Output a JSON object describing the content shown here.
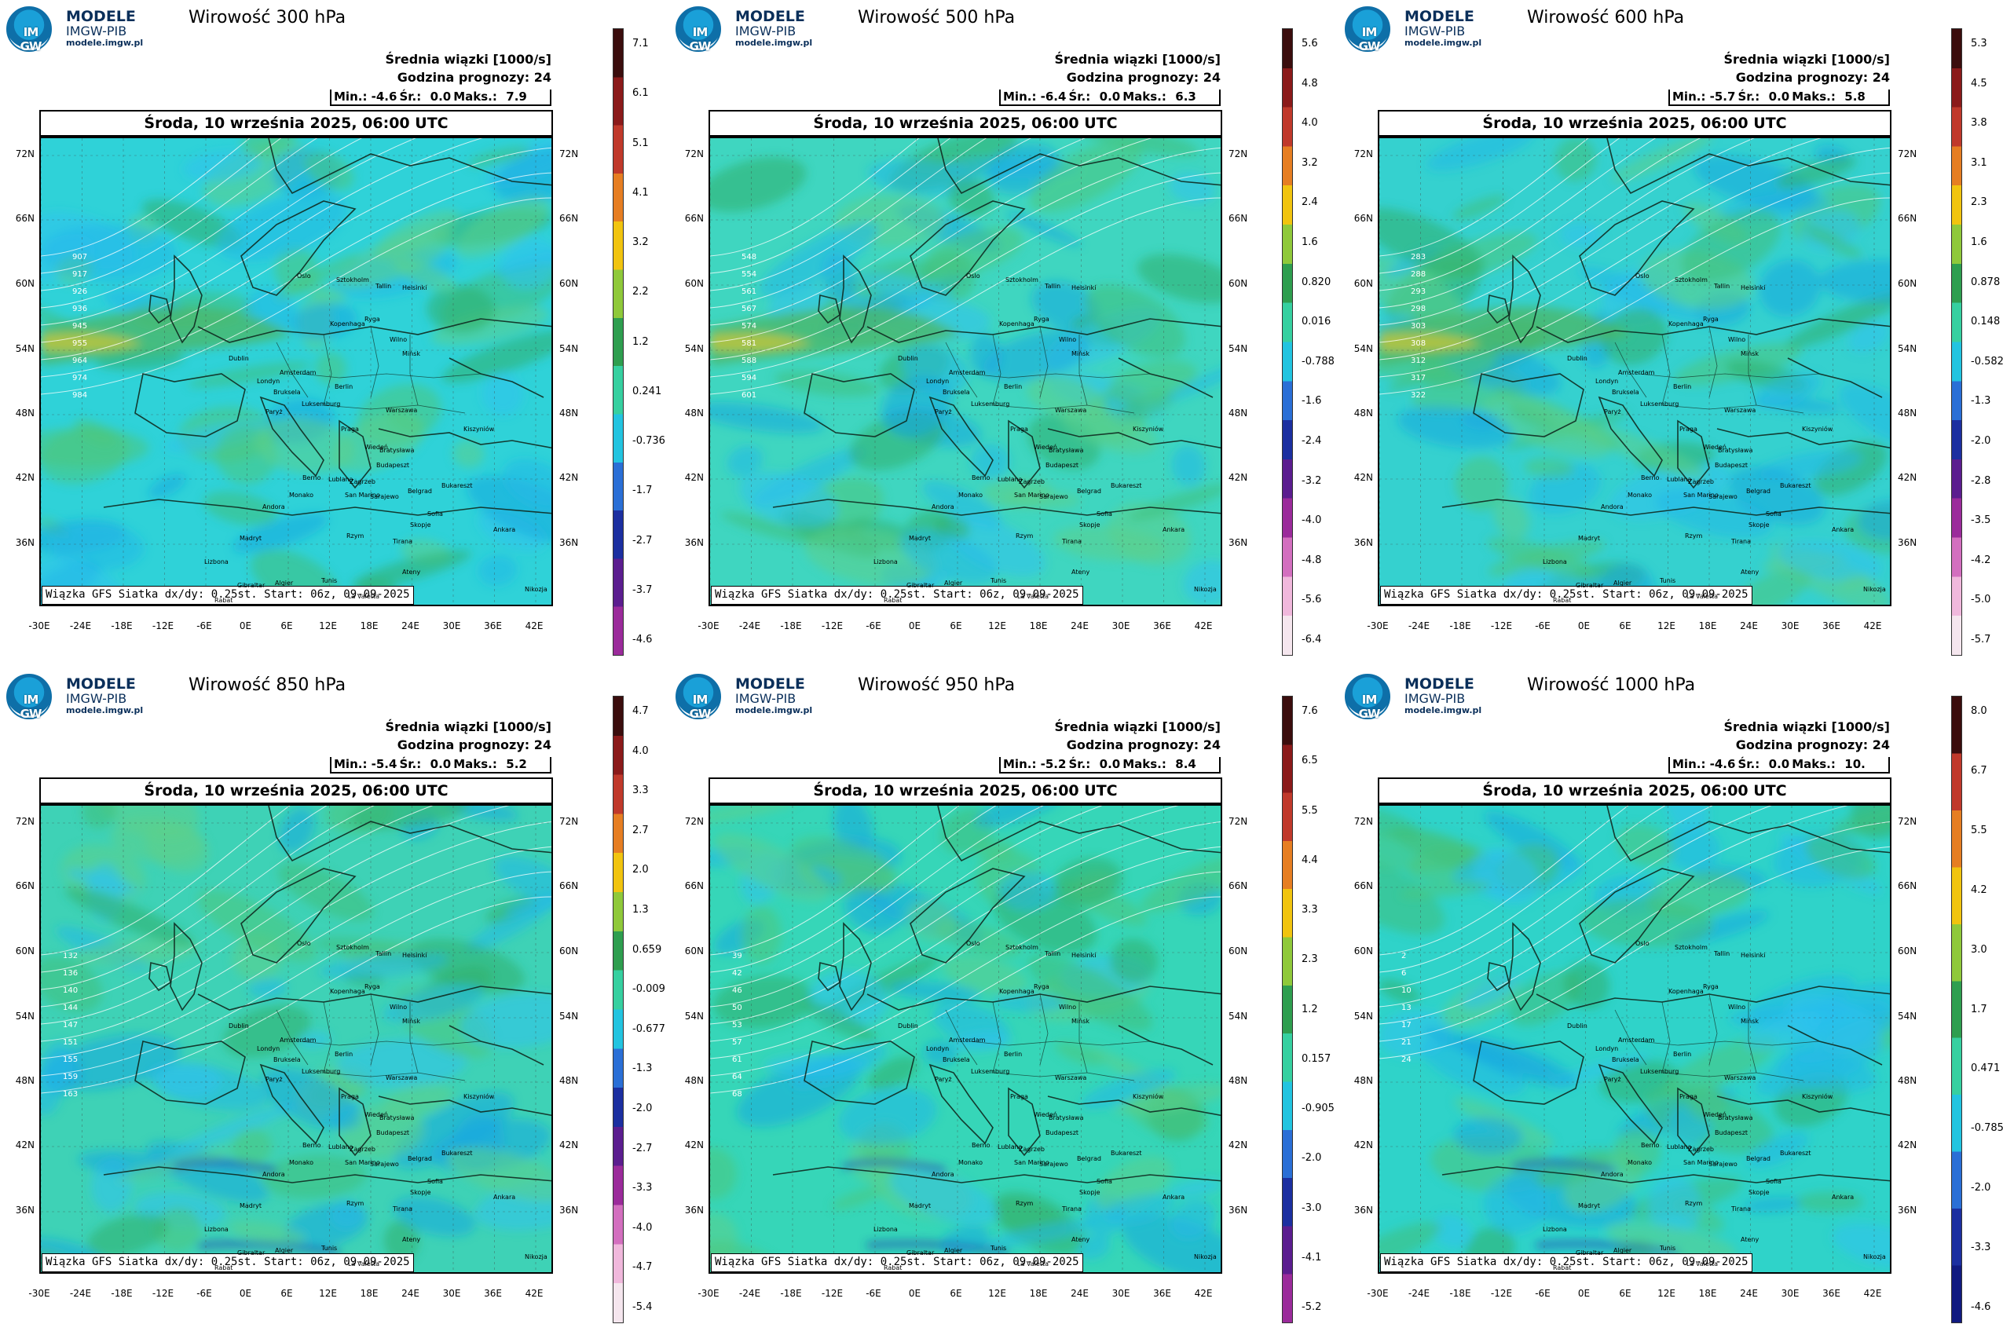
{
  "logo": {
    "line1": "MODELE",
    "line2": "IMGW-PIB",
    "line3": "modele.imgw.pl",
    "badge": "IM GW"
  },
  "common": {
    "var_label": "Średnia wiązki [1000/s]",
    "forecast": "Godzina prognozy: 24",
    "date": "Środa, 10 września 2025, 06:00 UTC",
    "footer": "Wiązka GFS Siatka dx/dy: 0.25st. Start: 06z, 09-09-2025",
    "stat_labels": {
      "min": "Min.:",
      "avg": "Śr.:",
      "max": "Maks.:"
    },
    "lat_labels": [
      "72N",
      "66N",
      "60N",
      "54N",
      "48N",
      "42N",
      "36N"
    ],
    "lon_labels": [
      "-30E",
      "-24E",
      "-18E",
      "-12E",
      "-6E",
      "0E",
      "6E",
      "12E",
      "18E",
      "24E",
      "30E",
      "36E",
      "42E"
    ],
    "cities": [
      {
        "name": "Helsinki"
      },
      {
        "name": "Oslo"
      },
      {
        "name": "Sztokholm"
      },
      {
        "name": "Tallin"
      },
      {
        "name": "Ryga"
      },
      {
        "name": "Wilno"
      },
      {
        "name": "Mińsk"
      },
      {
        "name": "Kopenhaga"
      },
      {
        "name": "Dublin"
      },
      {
        "name": "Amsterdam"
      },
      {
        "name": "Londyn"
      },
      {
        "name": "Berlin"
      },
      {
        "name": "Bruksela"
      },
      {
        "name": "Luksemburg"
      },
      {
        "name": "Paryż"
      },
      {
        "name": "Warszawa"
      },
      {
        "name": "Praga"
      },
      {
        "name": "Wiedeń"
      },
      {
        "name": "Bratysława"
      },
      {
        "name": "Kiszyniów"
      },
      {
        "name": "Budapeszt"
      },
      {
        "name": "Lublana"
      },
      {
        "name": "Zagrzeb"
      },
      {
        "name": "Berno"
      },
      {
        "name": "Belgrad"
      },
      {
        "name": "Sarajewo"
      },
      {
        "name": "Monako"
      },
      {
        "name": "San Marino"
      },
      {
        "name": "Bukareszt"
      },
      {
        "name": "Sofia"
      },
      {
        "name": "Skopje"
      },
      {
        "name": "Andora"
      },
      {
        "name": "Rzym"
      },
      {
        "name": "Tirana"
      },
      {
        "name": "Madryt"
      },
      {
        "name": "Ateny"
      },
      {
        "name": "Ankara"
      },
      {
        "name": "Lizbona"
      },
      {
        "name": "Gibraltar"
      },
      {
        "name": "Algier"
      },
      {
        "name": "Tunis"
      },
      {
        "name": "La Valetta"
      },
      {
        "name": "Rabat"
      },
      {
        "name": "Nikozja"
      }
    ]
  },
  "panels": [
    {
      "title": "Wirowość 300 hPa",
      "stats": {
        "min": "-4.6",
        "avg": "0.0",
        "max": "7.9"
      },
      "colorbar": {
        "ticks": [
          "7.1",
          "6.1",
          "5.1",
          "4.1",
          "3.2",
          "2.2",
          "1.2",
          "0.241",
          "-0.736",
          "-1.7",
          "-2.7",
          "-3.7",
          "-4.6"
        ],
        "colors": [
          "#3b0d0d",
          "#8b1a1a",
          "#c0392b",
          "#e67e22",
          "#f1c40f",
          "#8fc93a",
          "#2e9e4f",
          "#36d0a0",
          "#22c4e0",
          "#2a6fd6",
          "#1c2fa0",
          "#5b1d8f",
          "#9b2b9b"
        ]
      },
      "contours": [
        "907",
        "917",
        "926",
        "936",
        "945",
        "955",
        "964",
        "974",
        "984"
      ]
    },
    {
      "title": "Wirowość 500 hPa",
      "stats": {
        "min": "-6.4",
        "avg": "0.0",
        "max": "6.3"
      },
      "colorbar": {
        "ticks": [
          "5.6",
          "4.8",
          "4.0",
          "3.2",
          "2.4",
          "1.6",
          "0.820",
          "0.016",
          "-0.788",
          "-1.6",
          "-2.4",
          "-3.2",
          "-4.0",
          "-4.8",
          "-5.6",
          "-6.4"
        ],
        "colors": [
          "#3b0d0d",
          "#8b1a1a",
          "#c0392b",
          "#e67e22",
          "#f1c40f",
          "#8fc93a",
          "#2e9e4f",
          "#36d0a0",
          "#22c4e0",
          "#2a6fd6",
          "#1c2fa0",
          "#5b1d8f",
          "#9b2b9b",
          "#d36fbf",
          "#f0b8dc",
          "#f5e6ee"
        ]
      },
      "contours": [
        "548",
        "554",
        "561",
        "567",
        "574",
        "581",
        "588",
        "594",
        "601"
      ]
    },
    {
      "title": "Wirowość 600 hPa",
      "stats": {
        "min": "-5.7",
        "avg": "0.0",
        "max": "5.8"
      },
      "colorbar": {
        "ticks": [
          "5.3",
          "4.5",
          "3.8",
          "3.1",
          "2.3",
          "1.6",
          "0.878",
          "0.148",
          "-0.582",
          "-1.3",
          "-2.0",
          "-2.8",
          "-3.5",
          "-4.2",
          "-5.0",
          "-5.7"
        ],
        "colors": [
          "#3b0d0d",
          "#8b1a1a",
          "#c0392b",
          "#e67e22",
          "#f1c40f",
          "#8fc93a",
          "#2e9e4f",
          "#36d0a0",
          "#22c4e0",
          "#2a6fd6",
          "#1c2fa0",
          "#5b1d8f",
          "#9b2b9b",
          "#d36fbf",
          "#f0b8dc",
          "#f5e6ee"
        ]
      },
      "contours": [
        "283",
        "288",
        "293",
        "298",
        "303",
        "308",
        "312",
        "317",
        "322"
      ]
    },
    {
      "title": "Wirowość 850 hPa",
      "stats": {
        "min": "-5.4",
        "avg": "0.0",
        "max": "5.2"
      },
      "colorbar": {
        "ticks": [
          "4.7",
          "4.0",
          "3.3",
          "2.7",
          "2.0",
          "1.3",
          "0.659",
          "-0.009",
          "-0.677",
          "-1.3",
          "-2.0",
          "-2.7",
          "-3.3",
          "-4.0",
          "-4.7",
          "-5.4"
        ],
        "colors": [
          "#3b0d0d",
          "#8b1a1a",
          "#c0392b",
          "#e67e22",
          "#f1c40f",
          "#8fc93a",
          "#2e9e4f",
          "#36d0a0",
          "#22c4e0",
          "#2a6fd6",
          "#1c2fa0",
          "#5b1d8f",
          "#9b2b9b",
          "#d36fbf",
          "#f0b8dc",
          "#f5e6ee"
        ]
      },
      "contours": [
        "132",
        "136",
        "140",
        "144",
        "147",
        "151",
        "155",
        "159",
        "163"
      ]
    },
    {
      "title": "Wirowość 950 hPa",
      "stats": {
        "min": "-5.2",
        "avg": "0.0",
        "max": "8.4"
      },
      "colorbar": {
        "ticks": [
          "7.6",
          "6.5",
          "5.5",
          "4.4",
          "3.3",
          "2.3",
          "1.2",
          "0.157",
          "-0.905",
          "-2.0",
          "-3.0",
          "-4.1",
          "-5.2"
        ],
        "colors": [
          "#3b0d0d",
          "#8b1a1a",
          "#c0392b",
          "#e67e22",
          "#f1c40f",
          "#8fc93a",
          "#2e9e4f",
          "#36d0a0",
          "#22c4e0",
          "#2a6fd6",
          "#1c2fa0",
          "#5b1d8f",
          "#9b2b9b"
        ]
      },
      "contours": [
        "39",
        "42",
        "46",
        "50",
        "53",
        "57",
        "61",
        "64",
        "68"
      ]
    },
    {
      "title": "Wirowość 1000 hPa",
      "stats": {
        "min": "-4.6",
        "avg": "0.0",
        "max": "10."
      },
      "colorbar": {
        "ticks": [
          "8.0",
          "6.7",
          "5.5",
          "4.2",
          "3.0",
          "1.7",
          "0.471",
          "-0.785",
          "-2.0",
          "-3.3",
          "-4.6"
        ],
        "colors": [
          "#3b0d0d",
          "#c0392b",
          "#e67e22",
          "#f1c40f",
          "#8fc93a",
          "#2e9e4f",
          "#36d0a0",
          "#22c4e0",
          "#2a6fd6",
          "#1c2fa0",
          "#111a80"
        ]
      },
      "contours": [
        "2",
        "6",
        "10",
        "13",
        "17",
        "21",
        "24"
      ]
    }
  ]
}
